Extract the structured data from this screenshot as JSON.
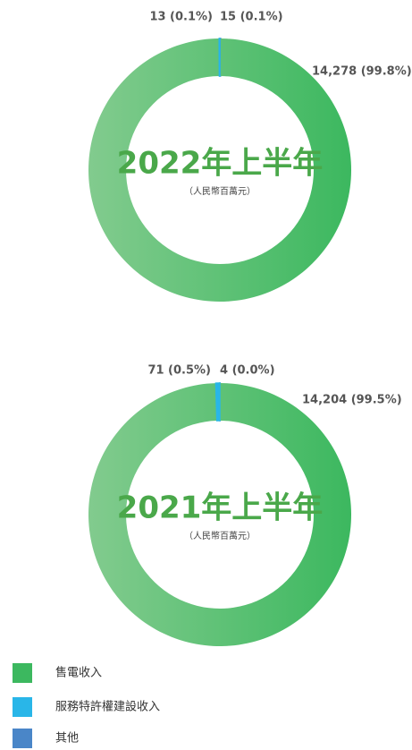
{
  "chart_data": [
    {
      "type": "pie",
      "title": "2022年上半年",
      "subtitle": "（人民幣百萬元）",
      "categories": [
        "售電收入",
        "服務特許權建設收入",
        "其他"
      ],
      "values": [
        14278,
        13,
        15
      ],
      "value_labels": [
        "14,278 (99.8%)",
        "13 (0.1%)",
        "15 (0.1%)"
      ],
      "colors": [
        "#3cb85f",
        "#29b6e8",
        "#4a86c8"
      ]
    },
    {
      "type": "pie",
      "title": "2021年上半年",
      "subtitle": "（人民幣百萬元）",
      "categories": [
        "售電收入",
        "服務特許權建設收入",
        "其他"
      ],
      "values": [
        14204,
        71,
        4
      ],
      "value_labels": [
        "14,204 (99.5%)",
        "71 (0.5%)",
        "4 (0.0%)"
      ],
      "colors": [
        "#3cb85f",
        "#29b6e8",
        "#4a86c8"
      ]
    }
  ]
}
